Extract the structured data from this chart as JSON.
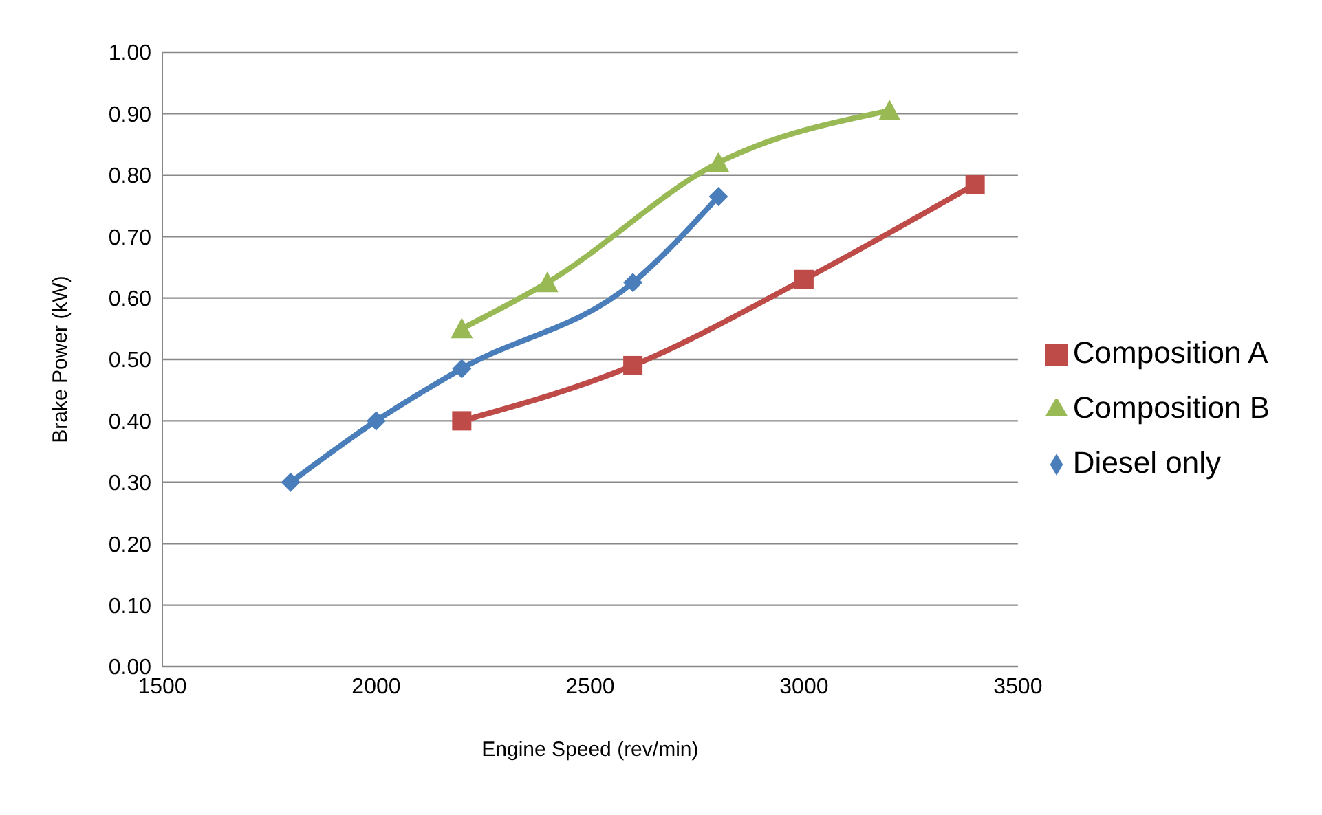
{
  "chart_data": {
    "type": "line",
    "xlabel": "Engine Speed (rev/min)",
    "ylabel": "Brake Power (kW)",
    "xlim": [
      1500,
      3500
    ],
    "xticks": [
      1500,
      2000,
      2500,
      3000,
      3500
    ],
    "ylim": [
      0,
      1
    ],
    "yticks": [
      {
        "value": 0,
        "label": "0.00"
      },
      {
        "value": 0.1,
        "label": "0.10"
      },
      {
        "value": 0.2,
        "label": "0.20"
      },
      {
        "value": 0.3,
        "label": "0.30"
      },
      {
        "value": 0.4,
        "label": "0.40"
      },
      {
        "value": 0.5,
        "label": "0.50"
      },
      {
        "value": 0.6,
        "label": "0.60"
      },
      {
        "value": 0.7,
        "label": "0.70"
      },
      {
        "value": 0.8,
        "label": "0.80"
      },
      {
        "value": 0.9,
        "label": "0.90"
      },
      {
        "value": 1,
        "label": "1.00"
      }
    ],
    "grid": "y",
    "legend": "right",
    "series": [
      {
        "name": "Diesel only",
        "color": "#4a7ebb",
        "marker": "diamond",
        "x": [
          1800,
          2000,
          2200,
          2600,
          2800
        ],
        "values": [
          0.3,
          0.4,
          0.485,
          0.625,
          0.765
        ]
      },
      {
        "name": "Composition A",
        "color": "#be4b48",
        "marker": "square",
        "x": [
          2200,
          2600,
          3000,
          3400
        ],
        "values": [
          0.4,
          0.49,
          0.63,
          0.785
        ]
      },
      {
        "name": "Composition B",
        "color": "#98b954",
        "marker": "triangle",
        "x": [
          2200,
          2400,
          2800,
          3200
        ],
        "values": [
          0.55,
          0.625,
          0.82,
          0.905
        ]
      }
    ]
  }
}
